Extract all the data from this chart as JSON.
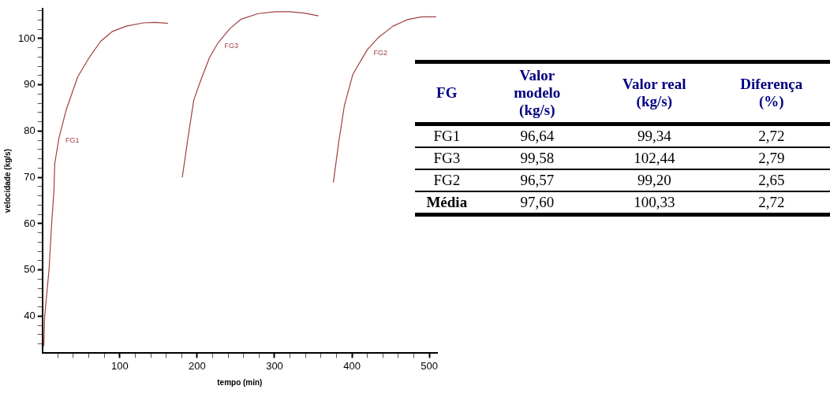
{
  "chart_data": [
    {
      "type": "line",
      "xlabel": "tempo (min)",
      "ylabel": "velocidade (kg/s)",
      "xlim": [
        0,
        510
      ],
      "ylim": [
        32,
        106.5
      ],
      "xticks": [
        {
          "value": 20,
          "label": null
        },
        {
          "value": 40,
          "label": null
        },
        {
          "value": 60,
          "label": null
        },
        {
          "value": 80,
          "label": null
        },
        100,
        {
          "value": 120,
          "label": null
        },
        {
          "value": 140,
          "label": null
        },
        {
          "value": 160,
          "label": null
        },
        {
          "value": 180,
          "label": null
        },
        200,
        {
          "value": 220,
          "label": null
        },
        {
          "value": 240,
          "label": null
        },
        {
          "value": 260,
          "label": null
        },
        {
          "value": 280,
          "label": null
        },
        300,
        {
          "value": 320,
          "label": null
        },
        {
          "value": 340,
          "label": null
        },
        {
          "value": 360,
          "label": null
        },
        {
          "value": 380,
          "label": null
        },
        400,
        {
          "value": 420,
          "label": null
        },
        {
          "value": 440,
          "label": null
        },
        {
          "value": 460,
          "label": null
        },
        {
          "value": 480,
          "label": null
        },
        500
      ],
      "yticks": [
        {
          "value": 34,
          "label": null
        },
        {
          "value": 36,
          "label": null
        },
        {
          "value": 38,
          "label": null
        },
        40,
        {
          "value": 42,
          "label": null
        },
        {
          "value": 44,
          "label": null
        },
        {
          "value": 46,
          "label": null
        },
        {
          "value": 48,
          "label": null
        },
        50,
        {
          "value": 52,
          "label": null
        },
        {
          "value": 54,
          "label": null
        },
        {
          "value": 56,
          "label": null
        },
        {
          "value": 58,
          "label": null
        },
        60,
        {
          "value": 62,
          "label": null
        },
        {
          "value": 64,
          "label": null
        },
        {
          "value": 66,
          "label": null
        },
        {
          "value": 68,
          "label": null
        },
        70,
        {
          "value": 72,
          "label": null
        },
        {
          "value": 74,
          "label": null
        },
        {
          "value": 76,
          "label": null
        },
        {
          "value": 78,
          "label": null
        },
        80,
        {
          "value": 82,
          "label": null
        },
        {
          "value": 84,
          "label": null
        },
        {
          "value": 86,
          "label": null
        },
        {
          "value": 88,
          "label": null
        },
        90,
        {
          "value": 92,
          "label": null
        },
        {
          "value": 94,
          "label": null
        },
        {
          "value": 96,
          "label": null
        },
        {
          "value": 98,
          "label": null
        },
        100,
        {
          "value": 102,
          "label": null
        },
        {
          "value": 104,
          "label": null
        },
        {
          "value": 106,
          "label": null
        }
      ],
      "grid": false,
      "legend": false,
      "marker": "none",
      "line_style": "solid",
      "series": [
        {
          "name": "FG1",
          "color": "#a04040",
          "x": [
            1.9,
            3,
            8.6,
            12,
            15,
            16,
            21.6,
            30.8,
            45.6,
            60.5,
            75.2,
            90,
            108.6,
            130.8,
            145.6,
            162.3
          ],
          "values": [
            33.5,
            40,
            50,
            60,
            67.3,
            73,
            78.6,
            84.6,
            91.7,
            95.9,
            99.4,
            101.5,
            102.7,
            103.4,
            103.5,
            103.3
          ]
        },
        {
          "name": "FG3",
          "color": "#a04040",
          "x": [
            180.8,
            188.2,
            195.6,
            204.9,
            216,
            227.1,
            242,
            256.8,
            279,
            301.2,
            319.8,
            338.3,
            356.8
          ],
          "values": [
            70,
            78.6,
            86.7,
            91.1,
            95.9,
            99.1,
            102.1,
            104.2,
            105.4,
            105.8,
            105.8,
            105.5,
            104.9
          ]
        },
        {
          "name": "FG2",
          "color": "#a04040",
          "x": [
            376,
            382.8,
            390.2,
            401.2,
            419.8,
            434.6,
            453.1,
            471.7,
            490.2,
            508.8
          ],
          "values": [
            68.9,
            77.5,
            85.5,
            92.3,
            97.6,
            100.3,
            102.7,
            104.1,
            104.7,
            104.7
          ]
        }
      ]
    },
    {
      "type": "other",
      "xlabel": "FG",
      "categories": [
        "FG1",
        "FG3",
        "FG2",
        "Média"
      ],
      "series": [
        {
          "name": "Valor modelo (kg/s)",
          "values": [
            96.64,
            99.58,
            96.57,
            97.6
          ],
          "value_labels": [
            "96,64",
            "99,58",
            "96,57",
            "97,60"
          ]
        },
        {
          "name": "Valor real (kg/s)",
          "values": [
            99.34,
            102.44,
            99.2,
            100.33
          ],
          "value_labels": [
            "99,34",
            "102,44",
            "99,20",
            "100,33"
          ]
        },
        {
          "name": "Diferença (%)",
          "values": [
            2.72,
            2.79,
            2.65,
            2.72
          ],
          "value_labels": [
            "2,72",
            "2,79",
            "2,65",
            "2,72"
          ]
        }
      ]
    }
  ]
}
